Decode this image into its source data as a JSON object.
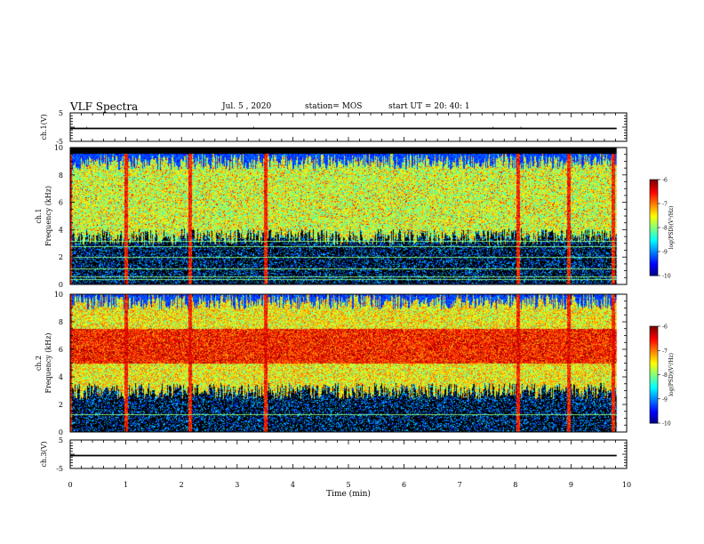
{
  "header": {
    "title": "VLF Spectra",
    "date": "Jul. 5 , 2020",
    "station": "station= MOS",
    "start": "start UT = 20: 40: 1"
  },
  "chart_data": [
    {
      "type": "line",
      "panel": "ch1-voltage",
      "ylabel": "ch.1(V)",
      "ylim": [
        -5,
        5
      ],
      "yticks": [
        "5",
        "-5"
      ],
      "x": [
        0,
        2,
        4,
        6,
        8,
        9.82
      ],
      "values": [
        0,
        0,
        0,
        0,
        0,
        0
      ]
    },
    {
      "type": "heatmap",
      "panel": "ch1-spectrogram",
      "ylabel": "ch.1\nFrequency (kHz)",
      "ylim": [
        0,
        10
      ],
      "yticks": [
        "0",
        "2",
        "4",
        "6",
        "8",
        "10"
      ],
      "colorbar": {
        "label": "log(PSD)(V²/Hz)",
        "range": [
          -10,
          -6
        ],
        "ticks": [
          "-6",
          "-7",
          "-8",
          "-9",
          "-10"
        ]
      },
      "band_low_khz": 3.5,
      "band_high_khz": 9.0,
      "cutoff_khz": 9.6,
      "lines_khz": [
        0.4,
        0.6,
        1.2,
        2.0,
        2.8,
        3.2
      ],
      "spikes_min": [
        0.0,
        1.0,
        2.15,
        3.5,
        8.05,
        8.95,
        9.75
      ]
    },
    {
      "type": "heatmap",
      "panel": "ch2-spectrogram",
      "ylabel": "ch.2\nFrequency (kHz)",
      "ylim": [
        0,
        10
      ],
      "yticks": [
        "0",
        "2",
        "4",
        "6",
        "8",
        "10"
      ],
      "colorbar": {
        "label": "log(PSD)(V²/Hz)",
        "range": [
          -10,
          -6
        ],
        "ticks": [
          "-6",
          "-7",
          "-8",
          "-9",
          "-10"
        ]
      },
      "band_low_khz": 3.0,
      "band_high_khz": 9.5,
      "core_low_khz": 5.0,
      "core_high_khz": 7.5,
      "lines_khz": [
        1.3
      ],
      "spikes_min": [
        0.0,
        1.0,
        2.15,
        3.5,
        8.05,
        8.95,
        9.75
      ]
    },
    {
      "type": "line",
      "panel": "ch3-voltage",
      "ylabel": "ch.3(V)",
      "ylim": [
        -5,
        5
      ],
      "yticks": [
        "5",
        "-5"
      ],
      "x": [
        0,
        2,
        4,
        6,
        8,
        9.82
      ],
      "values": [
        0,
        0,
        0,
        0,
        0,
        0
      ]
    }
  ],
  "xaxis": {
    "label": "Time (min)",
    "range": [
      0,
      10
    ],
    "ticks": [
      "0",
      "1",
      "2",
      "3",
      "4",
      "5",
      "6",
      "7",
      "8",
      "9",
      "10"
    ],
    "data_end_min": 9.82
  }
}
